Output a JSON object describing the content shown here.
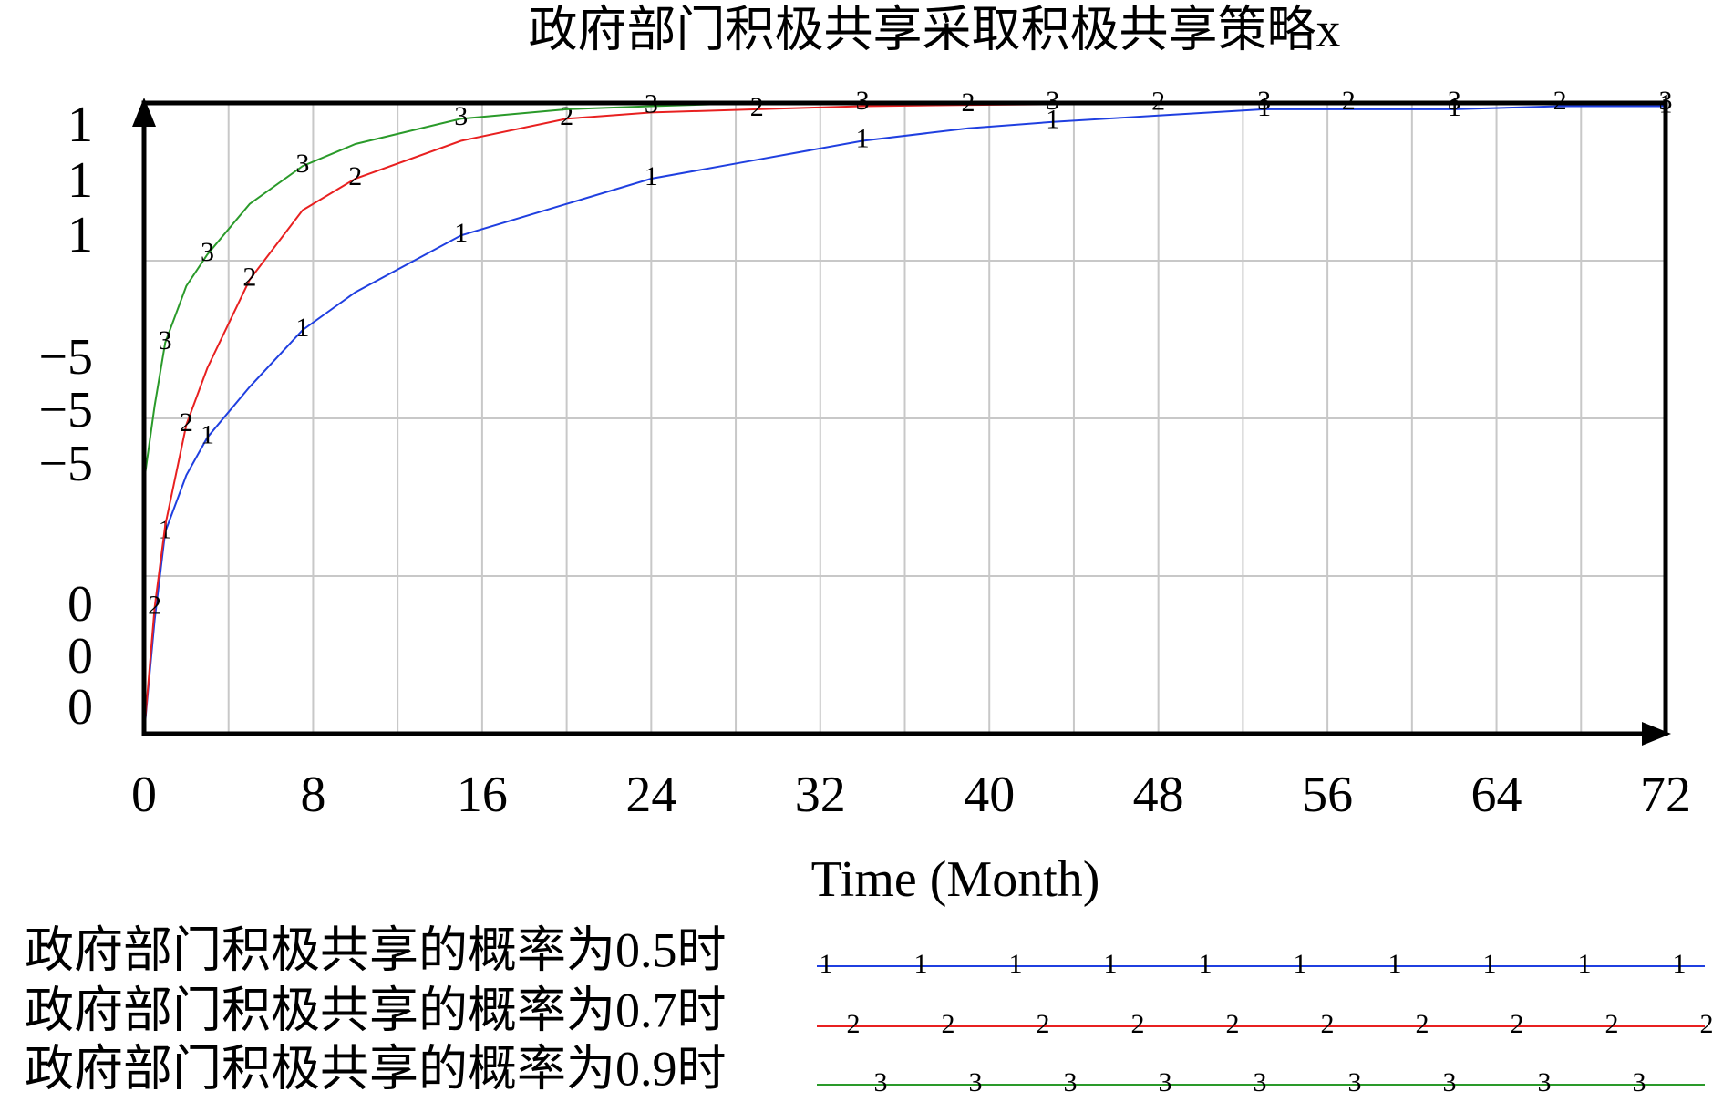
{
  "chart_data": {
    "type": "line",
    "title": "政府部门积极共享采取积极共享策略x",
    "x_label": "Time (Month)",
    "x": [
      0,
      0.5,
      1,
      2,
      3,
      5,
      7.5,
      10,
      15,
      20,
      24,
      29,
      34,
      39,
      43,
      48,
      53,
      57,
      62,
      67,
      72
    ],
    "xlim": [
      0,
      72
    ],
    "xticks": [
      0,
      8,
      16,
      24,
      32,
      40,
      48,
      56,
      64,
      72
    ],
    "x_minor_ticks": [
      4,
      12,
      20,
      28,
      36,
      44,
      52,
      60,
      68
    ],
    "ylim": [
      0,
      1
    ],
    "yticks": [
      0,
      0.25,
      0.5,
      0.75,
      1
    ],
    "y_labels": [
      "1",
      "1",
      "1",
      "−5",
      "−5",
      "−5",
      "0",
      "0",
      "0"
    ],
    "grid": true,
    "series": [
      {
        "name": "政府部门积极共享的概率为0.5时",
        "marker": "1",
        "color": "#1f3fe0",
        "values": [
          0,
          0.18,
          0.32,
          0.41,
          0.47,
          0.55,
          0.64,
          0.7,
          0.79,
          0.84,
          0.88,
          0.91,
          0.94,
          0.96,
          0.97,
          0.98,
          0.99,
          0.99,
          0.99,
          0.995,
          0.995
        ]
      },
      {
        "name": "政府部门积极共享的概率为0.7时",
        "marker": "2",
        "color": "#e82020",
        "values": [
          0,
          0.2,
          0.33,
          0.49,
          0.58,
          0.72,
          0.83,
          0.88,
          0.94,
          0.975,
          0.985,
          0.99,
          0.995,
          0.997,
          0.998,
          0.999,
          1,
          1,
          1,
          1,
          1
        ]
      },
      {
        "name": "政府部门积极共享的概率为0.9时",
        "marker": "3",
        "color": "#2a9a2a",
        "values": [
          0.4,
          0.52,
          0.62,
          0.71,
          0.76,
          0.84,
          0.9,
          0.935,
          0.975,
          0.99,
          0.995,
          1,
          1,
          1,
          1,
          1,
          1,
          1,
          1,
          1,
          1
        ]
      }
    ]
  }
}
